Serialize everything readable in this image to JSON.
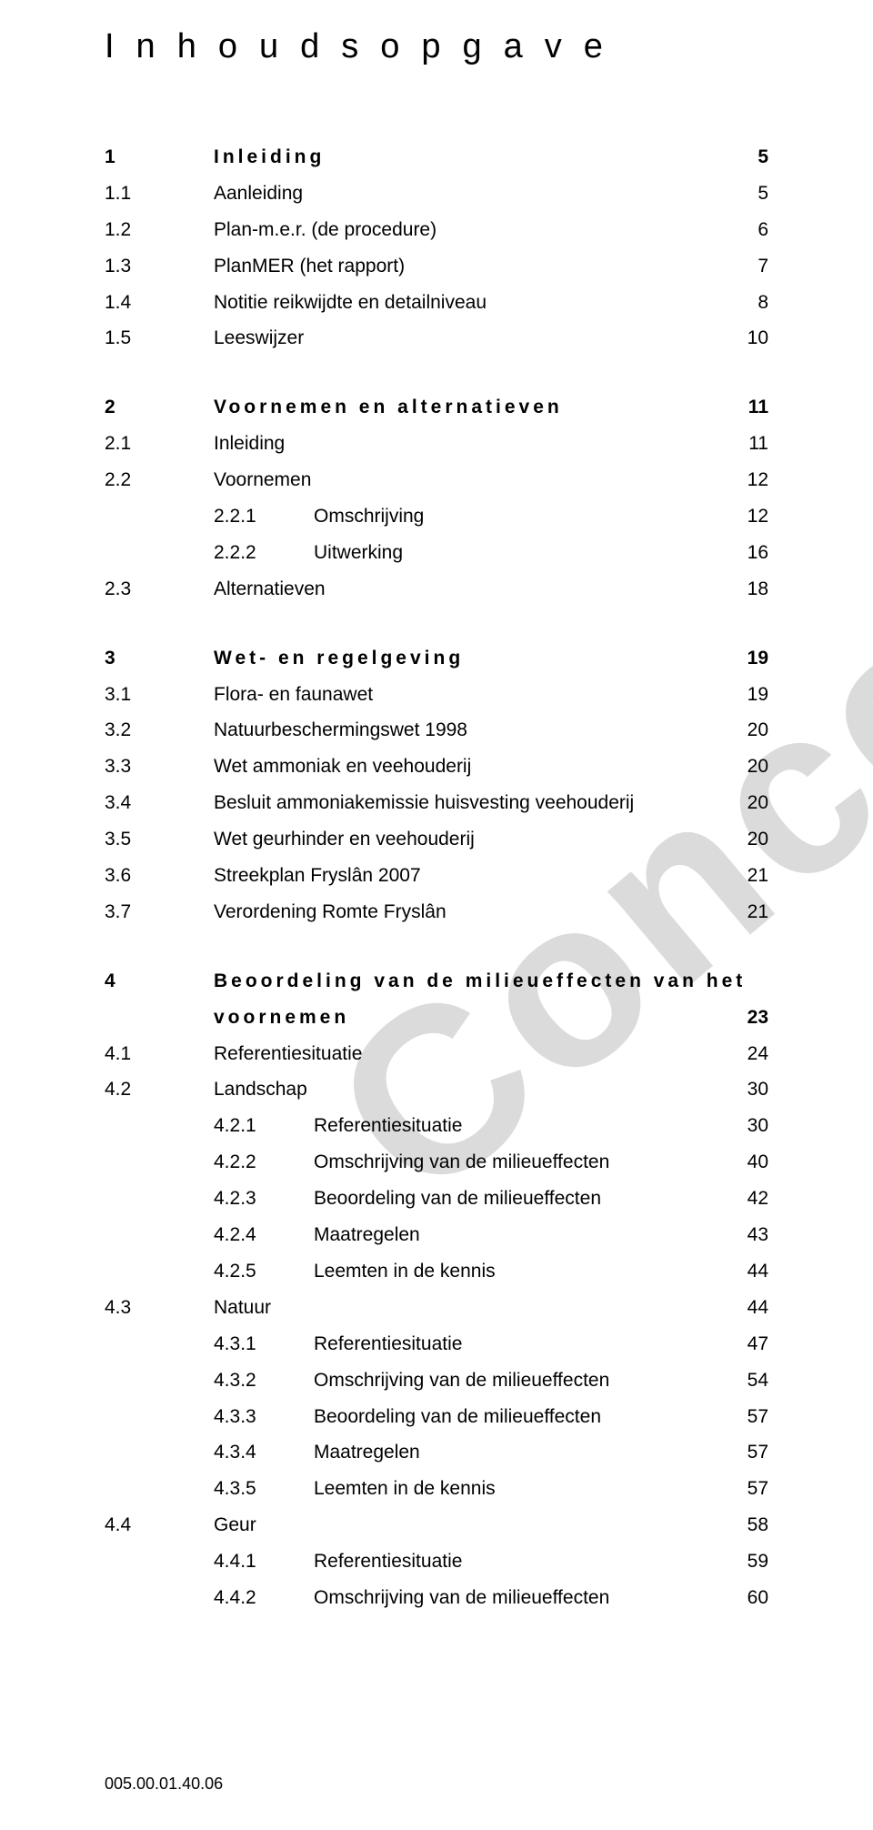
{
  "heading": "Inhoudsopgave",
  "watermark": "Concept",
  "footer": "005.00.01.40.06",
  "toc": [
    {
      "t": "l1",
      "num": "1",
      "label": "Inleiding",
      "page": "5"
    },
    {
      "t": "l2",
      "num": "1.1",
      "label": "Aanleiding",
      "page": "5"
    },
    {
      "t": "l2",
      "num": "1.2",
      "label": "Plan-m.e.r. (de procedure)",
      "page": "6"
    },
    {
      "t": "l2",
      "num": "1.3",
      "label": "PlanMER (het rapport)",
      "page": "7"
    },
    {
      "t": "l2",
      "num": "1.4",
      "label": "Notitie reikwijdte en detailniveau",
      "page": "8"
    },
    {
      "t": "l2",
      "num": "1.5",
      "label": "Leeswijzer",
      "page": "10"
    },
    {
      "t": "gap"
    },
    {
      "t": "l1",
      "num": "2",
      "label": "Voornemen en alternatieven",
      "page": "11"
    },
    {
      "t": "l2",
      "num": "2.1",
      "label": "Inleiding",
      "page": "11"
    },
    {
      "t": "l2",
      "num": "2.2",
      "label": "Voornemen",
      "page": "12"
    },
    {
      "t": "l3",
      "num": "2.2.1",
      "label": "Omschrijving",
      "page": "12"
    },
    {
      "t": "l3",
      "num": "2.2.2",
      "label": "Uitwerking",
      "page": "16"
    },
    {
      "t": "l2",
      "num": "2.3",
      "label": "Alternatieven",
      "page": "18"
    },
    {
      "t": "gap"
    },
    {
      "t": "l1",
      "num": "3",
      "label": "Wet- en regelgeving",
      "page": "19"
    },
    {
      "t": "l2",
      "num": "3.1",
      "label": "Flora- en faunawet",
      "page": "19"
    },
    {
      "t": "l2",
      "num": "3.2",
      "label": "Natuurbeschermingswet 1998",
      "page": "20"
    },
    {
      "t": "l2",
      "num": "3.3",
      "label": "Wet ammoniak en veehouderij",
      "page": "20"
    },
    {
      "t": "l2",
      "num": "3.4",
      "label": "Besluit ammoniakemissie huisvesting veehouderij",
      "page": "20"
    },
    {
      "t": "l2",
      "num": "3.5",
      "label": "Wet geurhinder en veehouderij",
      "page": "20"
    },
    {
      "t": "l2",
      "num": "3.6",
      "label": "Streekplan Fryslân 2007",
      "page": "21"
    },
    {
      "t": "l2",
      "num": "3.7",
      "label": "Verordening Romte Fryslân",
      "page": "21"
    },
    {
      "t": "gap"
    },
    {
      "t": "l1a",
      "num": "4",
      "label": "Beoordeling van de milieueffecten van het"
    },
    {
      "t": "l1b",
      "label": "voornemen",
      "page": "23"
    },
    {
      "t": "l2",
      "num": "4.1",
      "label": "Referentiesituatie",
      "page": "24"
    },
    {
      "t": "l2",
      "num": "4.2",
      "label": "Landschap",
      "page": "30"
    },
    {
      "t": "l3",
      "num": "4.2.1",
      "label": "Referentiesituatie",
      "page": "30"
    },
    {
      "t": "l3",
      "num": "4.2.2",
      "label": "Omschrijving van de milieueffecten",
      "page": "40"
    },
    {
      "t": "l3",
      "num": "4.2.3",
      "label": "Beoordeling van de milieueffecten",
      "page": "42"
    },
    {
      "t": "l3",
      "num": "4.2.4",
      "label": "Maatregelen",
      "page": "43"
    },
    {
      "t": "l3",
      "num": "4.2.5",
      "label": "Leemten in de kennis",
      "page": "44"
    },
    {
      "t": "l2",
      "num": "4.3",
      "label": "Natuur",
      "page": "44"
    },
    {
      "t": "l3",
      "num": "4.3.1",
      "label": "Referentiesituatie",
      "page": "47"
    },
    {
      "t": "l3",
      "num": "4.3.2",
      "label": "Omschrijving van de milieueffecten",
      "page": "54"
    },
    {
      "t": "l3",
      "num": "4.3.3",
      "label": "Beoordeling van de milieueffecten",
      "page": "57"
    },
    {
      "t": "l3",
      "num": "4.3.4",
      "label": "Maatregelen",
      "page": "57"
    },
    {
      "t": "l3",
      "num": "4.3.5",
      "label": "Leemten in de kennis",
      "page": "57"
    },
    {
      "t": "l2",
      "num": "4.4",
      "label": "Geur",
      "page": "58"
    },
    {
      "t": "l3",
      "num": "4.4.1",
      "label": "Referentiesituatie",
      "page": "59"
    },
    {
      "t": "l3",
      "num": "4.4.2",
      "label": "Omschrijving van de milieueffecten",
      "page": "60"
    }
  ]
}
